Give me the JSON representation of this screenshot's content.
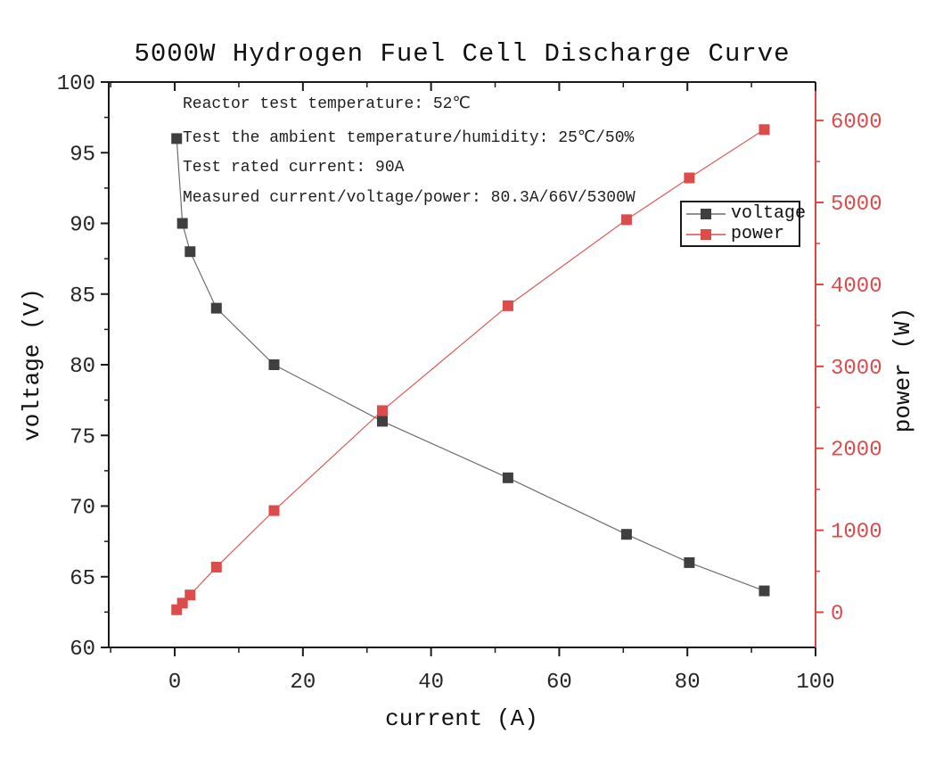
{
  "chart": {
    "title": "5000W Hydrogen Fuel Cell Discharge Curve",
    "x_label": "current (A)",
    "y_left_label": "voltage (V)",
    "y_right_label": "power (W)"
  },
  "annotations": {
    "lines": [
      "Reactor test temperature: 52℃",
      "Test the ambient temperature/humidity: 25℃/50%",
      "Test rated current: 90A",
      "Measured current/voltage/power: 80.3A/66V/5300W"
    ]
  },
  "legend": {
    "items": [
      {
        "label": "voltage",
        "color": "#3f3f3f",
        "line_color": "#6e6e6e",
        "marker": "square-marker"
      },
      {
        "label": "power",
        "color": "#dd4b4b",
        "line_color": "#dd4b4b",
        "marker": "square-marker"
      }
    ]
  },
  "colors": {
    "spine": "#1a1a1a",
    "right_axis": "#dd4444",
    "tick_label": "#262626",
    "right_tick_label": "#dd4b4b",
    "voltage_marker": "#3f3f3f",
    "voltage_line": "#6e6e6e",
    "power_marker": "#dd4b4b",
    "power_line": "#e05a5a"
  },
  "chart_data": {
    "type": "line",
    "title": "5000W Hydrogen Fuel Cell Discharge Curve",
    "xlabel": "current (A)",
    "ylabel_left": "voltage (V)",
    "ylabel_right": "power (W)",
    "x": [
      0.3,
      1.2,
      2.4,
      6.5,
      15.5,
      32.4,
      52,
      70.5,
      80.3,
      92
    ],
    "series": [
      {
        "name": "voltage",
        "axis": "left",
        "units": "V",
        "values": [
          96,
          90,
          88,
          84,
          80,
          76,
          72,
          68,
          66,
          64
        ]
      },
      {
        "name": "power",
        "axis": "right",
        "units": "W",
        "values": [
          30,
          110,
          210,
          550,
          1240,
          2460,
          3740,
          4790,
          5300,
          5890
        ]
      }
    ],
    "x_axis": {
      "range": [
        -10.3,
        100
      ],
      "major_ticks": [
        0,
        20,
        40,
        60,
        80,
        100
      ],
      "minor_step": 10
    },
    "y_left": {
      "range": [
        60,
        100
      ],
      "major_ticks": [
        100,
        95,
        90,
        85,
        80,
        75,
        70,
        65,
        60
      ],
      "minor_step": 2.5
    },
    "y_right": {
      "range": [
        -430,
        6470
      ],
      "major_ticks": [
        6000,
        5000,
        4000,
        3000,
        2000,
        1000,
        0
      ],
      "minor_step": 500
    },
    "marker": "square",
    "grid": false,
    "legend_position": "upper-right-inside"
  }
}
